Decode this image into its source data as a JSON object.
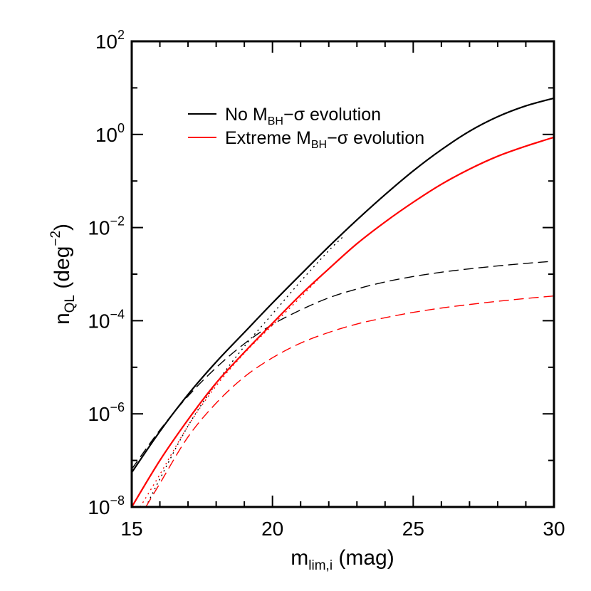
{
  "chart_data": {
    "type": "line",
    "title": "",
    "xlabel": {
      "base": "m",
      "sub": "lim,i",
      "rest": " (mag)"
    },
    "ylabel": {
      "base": "n",
      "sub": "QL",
      "rest_open": " (deg",
      "sup": "−2",
      "rest_close": ")"
    },
    "x_range": [
      15,
      30
    ],
    "y_range": [
      1e-08,
      100
    ],
    "y_scale": "log",
    "grid": false,
    "legend_position": "upper-left",
    "x_ticks": [
      15,
      20,
      25,
      30
    ],
    "y_ticks": [
      {
        "value": 1e-08,
        "base": "10",
        "exp": "−8"
      },
      {
        "value": 1e-06,
        "base": "10",
        "exp": "−6"
      },
      {
        "value": 0.0001,
        "base": "10",
        "exp": "−4"
      },
      {
        "value": 0.01,
        "base": "10",
        "exp": "−2"
      },
      {
        "value": 1,
        "base": "10",
        "exp": "0"
      },
      {
        "value": 100,
        "base": "10",
        "exp": "2"
      }
    ],
    "legend": [
      {
        "pre": "No M",
        "sub": "BH",
        "post": "−σ evolution",
        "color": "#000000"
      },
      {
        "pre": "Extreme M",
        "sub": "BH",
        "post": "−σ evolution",
        "color": "#ff0000"
      }
    ],
    "series": [
      {
        "color": "#000000",
        "style": "solid",
        "x": [
          15,
          16,
          17,
          18,
          19,
          20,
          21,
          22,
          23,
          24,
          25,
          26,
          27,
          28,
          29,
          30
        ],
        "y": [
          5.5e-08,
          4.2e-07,
          2.6e-06,
          1.3e-05,
          5.6e-05,
          0.00024,
          0.00098,
          0.0039,
          0.0146,
          0.051,
          0.165,
          0.47,
          1.17,
          2.4,
          4.1,
          6.0
        ]
      },
      {
        "color": "#000000",
        "style": "dashed",
        "x": [
          15,
          16,
          17,
          18,
          19,
          20,
          21,
          22,
          23,
          24,
          25,
          26,
          27,
          28,
          29,
          30
        ],
        "y": [
          6.5e-08,
          4.5e-07,
          2.4e-06,
          9.8e-06,
          3.2e-05,
          8.3e-05,
          0.00017,
          0.00031,
          0.00048,
          0.00068,
          0.00089,
          0.0011,
          0.0013,
          0.0015,
          0.0017,
          0.0019
        ]
      },
      {
        "color": "#000000",
        "style": "dotted",
        "x": [
          15.5,
          16,
          17,
          18,
          19,
          20,
          21,
          22,
          22.5
        ],
        "y": [
          1e-08,
          4e-08,
          5.5e-07,
          4.5e-06,
          2.8e-05,
          0.00014,
          0.0007,
          0.0032,
          0.0063
        ]
      },
      {
        "color": "#ff0000",
        "style": "solid",
        "x": [
          15,
          16,
          17,
          18,
          19,
          20,
          21,
          22,
          23,
          24,
          25,
          26,
          27,
          28,
          29,
          30
        ],
        "y": [
          1e-08,
          1e-07,
          7.5e-07,
          4.6e-06,
          2.1e-05,
          8.8e-05,
          0.00036,
          0.0013,
          0.0045,
          0.0132,
          0.035,
          0.085,
          0.18,
          0.34,
          0.56,
          0.87
        ]
      },
      {
        "color": "#ff0000",
        "style": "dashed",
        "x": [
          15.5,
          16,
          17,
          18,
          19,
          20,
          21,
          22,
          23,
          24,
          25,
          26,
          27,
          28,
          29,
          30
        ],
        "y": [
          1e-08,
          3.2e-08,
          3.2e-07,
          1.7e-06,
          6.2e-06,
          1.6e-05,
          3.3e-05,
          5.6e-05,
          8.5e-05,
          0.000116,
          0.000151,
          0.000187,
          0.000223,
          0.000261,
          0.0003,
          0.00034
        ]
      },
      {
        "color": "#ff0000",
        "style": "dotted",
        "x": [
          15.3,
          16,
          17,
          18,
          19,
          20,
          21,
          21.8
        ],
        "y": [
          1e-08,
          5e-08,
          5.5e-07,
          4e-06,
          2e-05,
          8e-05,
          0.00032,
          0.001
        ]
      }
    ]
  }
}
